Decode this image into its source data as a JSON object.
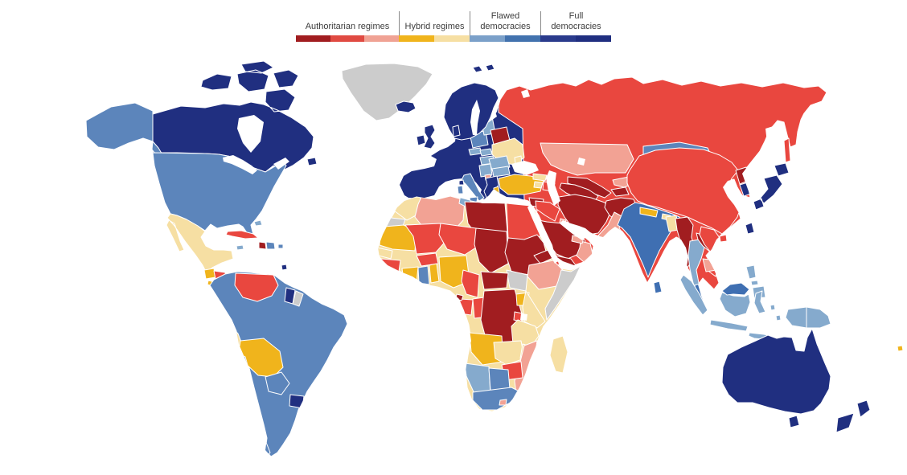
{
  "legend": {
    "groups": [
      {
        "label": "Authoritarian regimes",
        "swatches": [
          "#a11d20",
          "#e04a42",
          "#f0a294"
        ]
      },
      {
        "label": "Hybrid regimes",
        "swatches": [
          "#f0b41c",
          "#f6dfa3"
        ]
      },
      {
        "label": "Flawed democracies",
        "swatches": [
          "#7ba0c9",
          "#4272ae"
        ]
      },
      {
        "label": "Full democracies",
        "swatches": [
          "#2a3b8c",
          "#202f80"
        ]
      }
    ]
  },
  "map": {
    "ocean": "#ffffff",
    "border": "#ffffff",
    "palette": {
      "auth_dark": "#a11d20",
      "auth_mid": "#e9473f",
      "auth_light": "#f2a294",
      "hybrid_gold": "#f0b41c",
      "hybrid_cream": "#f6dfa3",
      "flawed_light": "#85aacd",
      "flawed_mid": "#5c85bb",
      "flawed_deep": "#3f6fb2",
      "full": "#202f80",
      "nodata": "#cccccc"
    },
    "regions": {
      "greenland": "nodata",
      "canada": "full",
      "alaska": "flawed_mid",
      "usa": "flawed_mid",
      "mexico": "hybrid_cream",
      "guatemala": "hybrid_gold",
      "el-salvador": "hybrid_gold",
      "honduras": "auth_mid",
      "nicaragua": "auth_mid",
      "costa-rica": "full",
      "panama": "flawed_mid",
      "cuba": "auth_mid",
      "jamaica": "flawed_light",
      "haiti": "auth_dark",
      "dominican-republic": "flawed_mid",
      "puerto-rico": "flawed_mid",
      "bahamas": "flawed_light",
      "trinidad-and-tobago": "full",
      "south-america": "flawed_mid",
      "venezuela": "auth_mid",
      "suriname": "full",
      "french-guiana": "nodata",
      "ecuador": "hybrid_cream",
      "peru": "hybrid_cream",
      "bolivia": "hybrid_gold",
      "paraguay": "flawed_mid",
      "chile": "flawed_mid",
      "uruguay": "full",
      "europe-west": "full",
      "scandinavia": "full",
      "denmark": "full",
      "uk": "full",
      "ireland": "full",
      "iceland": "full",
      "svalbard": "full",
      "poland": "flawed_mid",
      "czechia": "flawed_light",
      "slovakia": "flawed_light",
      "hungary": "flawed_light",
      "baltics": "flawed_light",
      "belarus": "auth_dark",
      "ukraine": "hybrid_cream",
      "moldova": "hybrid_cream",
      "romania": "flawed_light",
      "balkans": "flawed_light",
      "north-macedonia": "auth_light",
      "bulgaria": "flawed_light",
      "greece": "full",
      "italy": "flawed_mid",
      "sicily": "flawed_mid",
      "sardinia": "flawed_mid",
      "corsica": "full",
      "russia": "auth_mid",
      "kazakhstan": "auth_light",
      "mongolia": "flawed_mid",
      "china": "auth_mid",
      "north-korea": "auth_dark",
      "south-korea": "full",
      "japan": "full",
      "taiwan": "full",
      "georgia": "hybrid_cream",
      "armenia": "hybrid_cream",
      "azerbaijan": "auth_mid",
      "turkey": "hybrid_gold",
      "syria": "auth_dark",
      "iraq": "auth_mid",
      "jordan": "auth_light",
      "israel": "flawed_deep",
      "saudi-arabia": "auth_dark",
      "kuwait": "auth_light",
      "yemen": "auth_dark",
      "oman": "auth_light",
      "uae": "auth_light",
      "iran": "auth_dark",
      "afghanistan": "auth_dark",
      "turkmenistan": "auth_dark",
      "uzbekistan": "auth_dark",
      "kyrgyzstan": "auth_light",
      "tajikistan": "auth_dark",
      "pakistan": "auth_light",
      "india": "flawed_deep",
      "nepal": "hybrid_gold",
      "bhutan": "hybrid_cream",
      "bangladesh": "hybrid_cream",
      "sri-lanka": "flawed_deep",
      "myanmar": "auth_dark",
      "thailand": "flawed_light",
      "laos": "auth_dark",
      "cambodia": "auth_light",
      "vietnam": "auth_mid",
      "malaysia": "flawed_deep",
      "indonesia": "flawed_light",
      "philippines": "flawed_light",
      "papua-new-guinea": "flawed_light",
      "africa-base": "hybrid_cream",
      "morocco": "hybrid_cream",
      "western-sahara": "nodata",
      "algeria": "auth_light",
      "tunisia": "flawed_light",
      "libya": "auth_dark",
      "egypt": "auth_mid",
      "mauritania": "hybrid_gold",
      "senegal": "hybrid_cream",
      "guinea": "auth_mid",
      "sierra-leone": "hybrid_gold",
      "liberia": "hybrid_cream",
      "mali": "auth_mid",
      "burkina-faso": "auth_mid",
      "cote-divoire": "hybrid_gold",
      "ghana": "flawed_mid",
      "benin": "hybrid_gold",
      "niger": "auth_mid",
      "nigeria": "hybrid_gold",
      "chad": "auth_dark",
      "sudan": "auth_dark",
      "eritrea": "auth_dark",
      "djibouti": "auth_mid",
      "ethiopia": "auth_light",
      "somalia": "nodata",
      "south-sudan": "nodata",
      "central-african-republic": "auth_dark",
      "cameroon": "auth_mid",
      "gabon": "auth_mid",
      "equatorial-guinea": "auth_dark",
      "congo": "auth_mid",
      "drc": "auth_dark",
      "uganda": "hybrid_gold",
      "kenya": "hybrid_cream",
      "rwanda-burundi": "auth_mid",
      "tanzania": "hybrid_cream",
      "angola": "hybrid_gold",
      "zambia": "hybrid_cream",
      "malawi": "hybrid_cream",
      "mozambique": "auth_light",
      "zimbabwe": "auth_mid",
      "namibia": "flawed_light",
      "botswana": "flawed_mid",
      "south-africa": "flawed_mid",
      "lesotho-eswatini": "auth_light",
      "madagascar": "hybrid_cream",
      "australia": "full",
      "new-zealand": "full",
      "fiji": "hybrid_gold"
    }
  }
}
